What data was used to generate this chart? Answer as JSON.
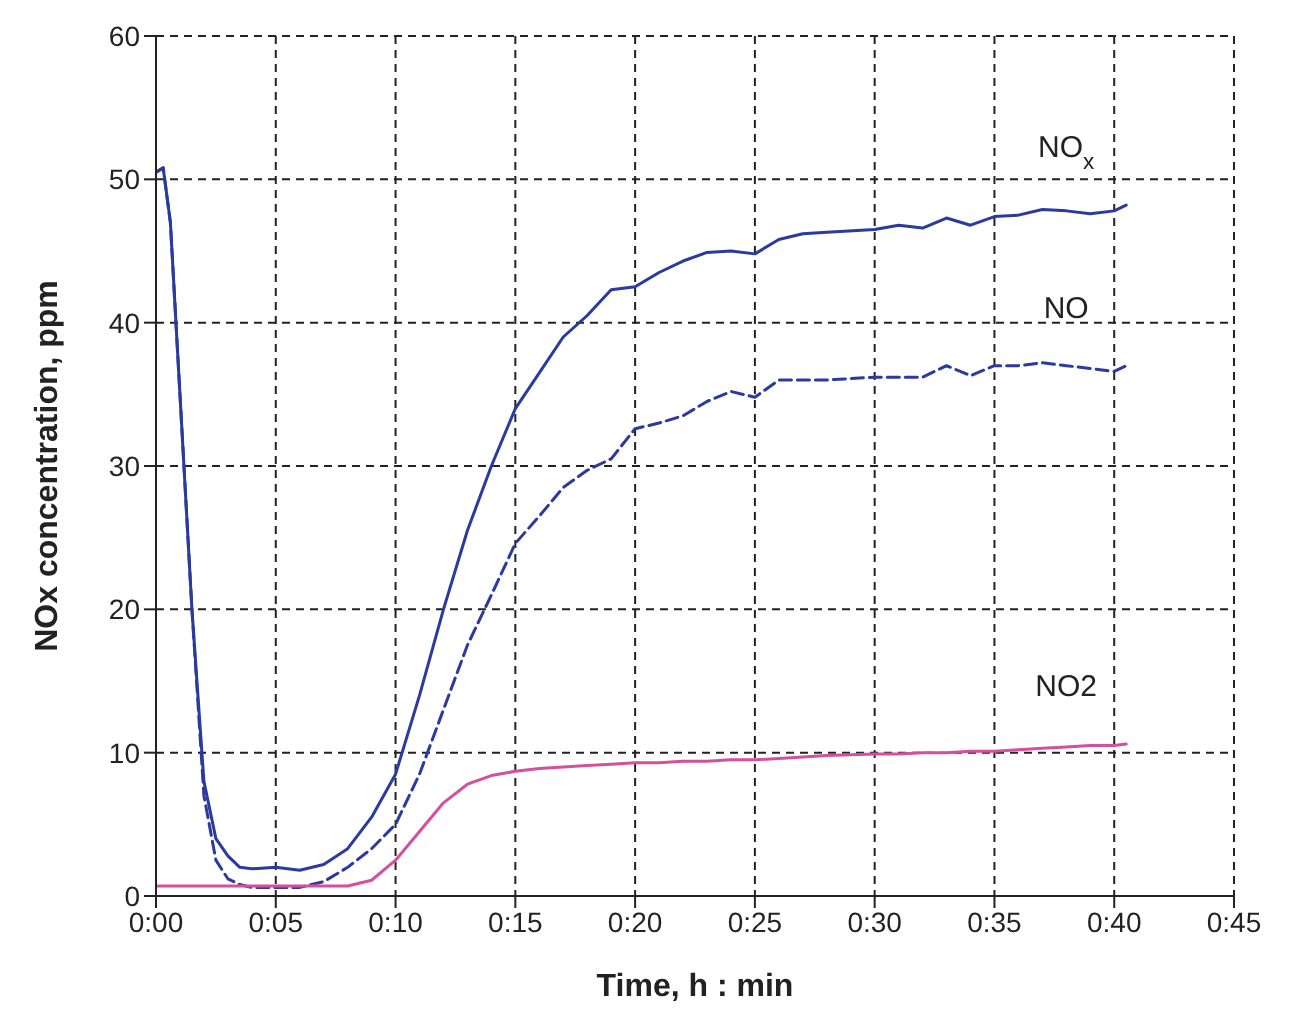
{
  "chart_data": {
    "type": "line",
    "xlabel": "Time, h : min",
    "ylabel": "NOx concentration, ppm",
    "x": [
      0,
      0.3,
      0.6,
      1,
      1.5,
      2,
      2.5,
      3,
      3.5,
      4,
      5,
      6,
      7,
      8,
      9,
      10,
      11,
      12,
      13,
      14,
      15,
      16,
      17,
      18,
      19,
      20,
      21,
      22,
      23,
      24,
      25,
      26,
      27,
      28,
      30,
      31,
      32,
      33,
      34,
      35,
      36,
      37,
      38,
      39,
      40,
      40.5
    ],
    "series": [
      {
        "name": "NO$_{x}$",
        "color": "#2b3a9e",
        "line_style": "solid",
        "values": [
          50.5,
          50.8,
          47,
          35,
          20,
          8,
          4,
          2.8,
          2.0,
          1.9,
          2.0,
          1.8,
          2.2,
          3.3,
          5.5,
          8.5,
          14,
          20,
          25.5,
          30,
          34,
          36.5,
          39,
          40.5,
          42.3,
          42.5,
          43.5,
          44.3,
          44.9,
          45,
          44.8,
          45.8,
          46.2,
          46.3,
          46.5,
          46.8,
          46.6,
          47.3,
          46.8,
          47.4,
          47.5,
          47.9,
          47.8,
          47.6,
          47.8,
          48.2
        ]
      },
      {
        "name": "NO",
        "color": "#2b3a9e",
        "line_style": "dashed",
        "values": [
          50.5,
          50.8,
          47,
          35,
          20,
          7,
          2.5,
          1.2,
          0.8,
          0.6,
          0.6,
          0.6,
          1,
          2,
          3.3,
          5,
          8.5,
          13,
          17.5,
          21,
          24.6,
          26.5,
          28.5,
          29.7,
          30.5,
          32.6,
          33,
          33.5,
          34.5,
          35.2,
          34.8,
          36,
          36,
          36,
          36.2,
          36.2,
          36.2,
          37,
          36.3,
          37,
          37,
          37.2,
          37,
          36.8,
          36.6,
          37
        ]
      },
      {
        "name": "NO2",
        "color": "#d4509e",
        "line_style": "solid",
        "values": [
          0.7,
          0.7,
          0.7,
          0.7,
          0.7,
          0.7,
          0.7,
          0.7,
          0.7,
          0.7,
          0.7,
          0.7,
          0.7,
          0.7,
          1.1,
          2.5,
          4.5,
          6.5,
          7.8,
          8.4,
          8.7,
          8.9,
          9.0,
          9.1,
          9.2,
          9.3,
          9.3,
          9.4,
          9.4,
          9.5,
          9.5,
          9.6,
          9.7,
          9.8,
          9.9,
          9.9,
          10,
          10,
          10.1,
          10.1,
          10.2,
          10.3,
          10.4,
          10.5,
          10.5,
          10.6
        ]
      }
    ],
    "xlim": [
      0,
      45
    ],
    "xticks": [
      {
        "value": 0,
        "label": "0:00"
      },
      {
        "value": 5,
        "label": "0:05"
      },
      {
        "value": 10,
        "label": "0:10"
      },
      {
        "value": 15,
        "label": "0:15"
      },
      {
        "value": 20,
        "label": "0:20"
      },
      {
        "value": 25,
        "label": "0:25"
      },
      {
        "value": 30,
        "label": "0:30"
      },
      {
        "value": 35,
        "label": "0:35"
      },
      {
        "value": 40,
        "label": "0:40"
      },
      {
        "value": 45,
        "label": "0:45"
      }
    ],
    "ylim": [
      0,
      60
    ],
    "yticks": [
      0,
      10,
      20,
      30,
      40,
      50,
      60
    ],
    "grid": true,
    "legend": false,
    "marker": "none"
  }
}
